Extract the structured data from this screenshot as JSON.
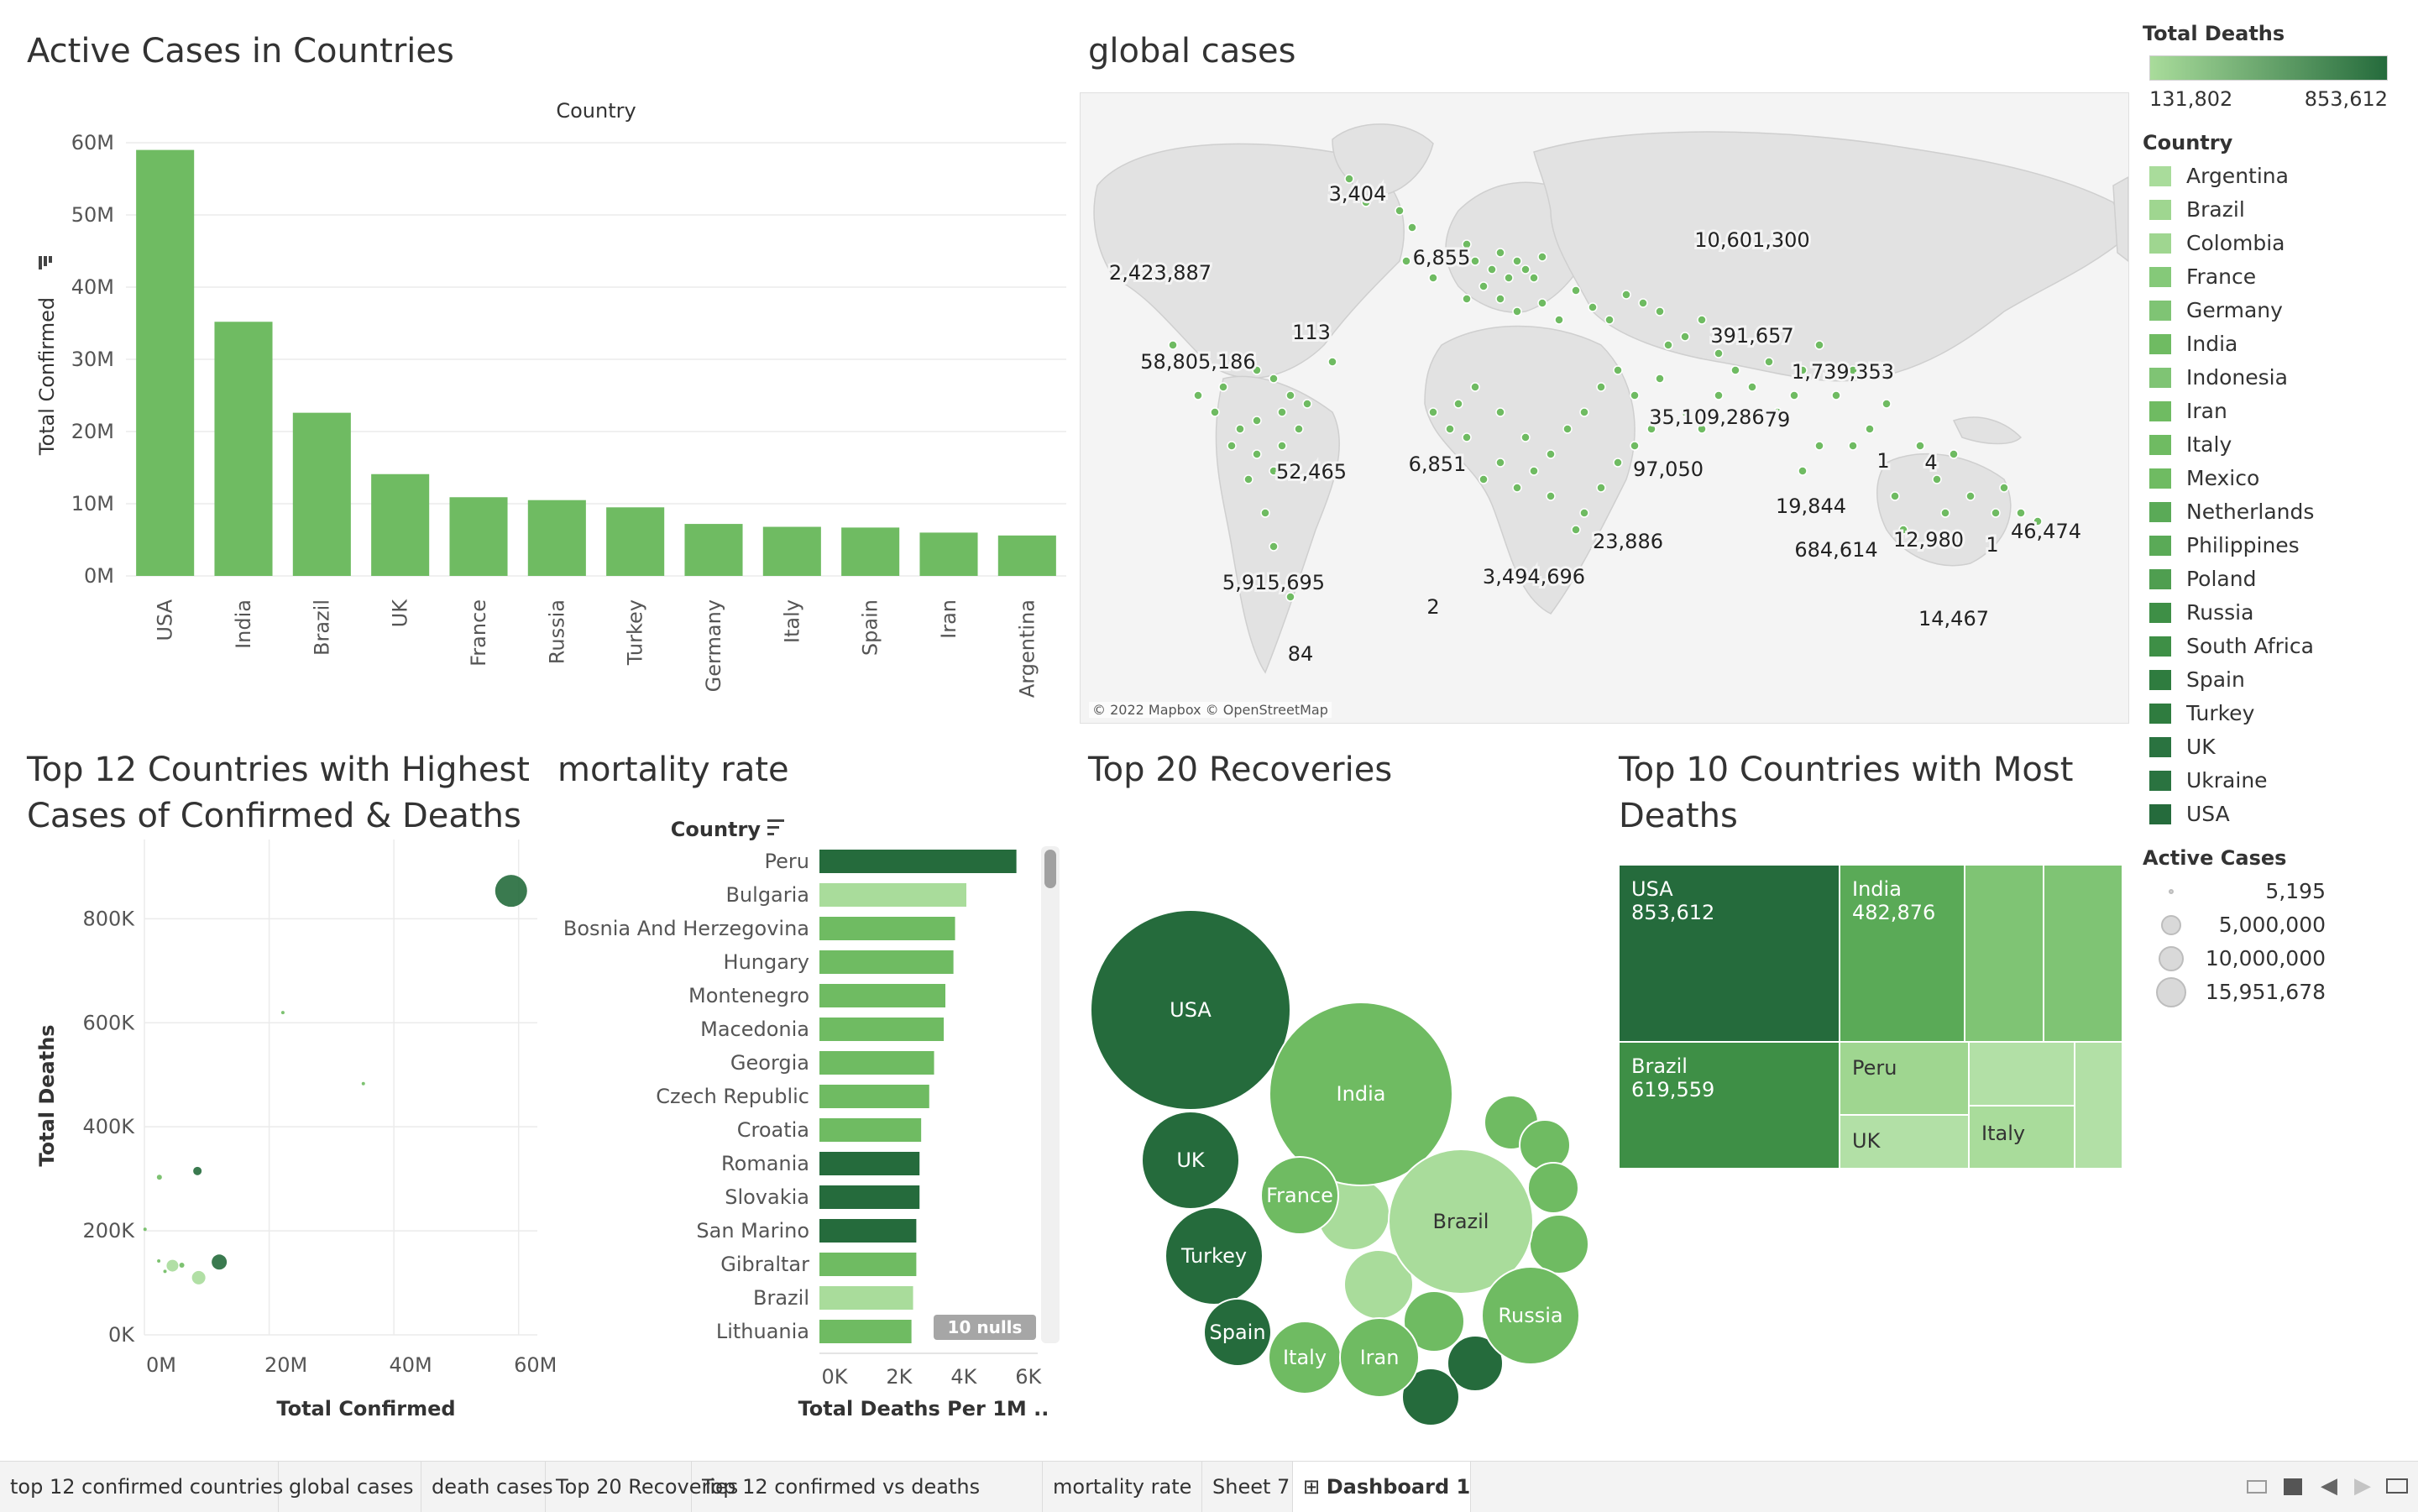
{
  "colors": {
    "bar_green": "#6fbb62",
    "dark_green": "#256b3c",
    "light_green": "#a9dc9b",
    "map_land": "#e4e4e4",
    "map_water": "#f5f5f5",
    "grid": "#ebebeb"
  },
  "active_cases": {
    "title": "Active Cases in Countries",
    "chart_data": {
      "type": "bar",
      "title": "Country",
      "xlabel": "",
      "ylabel": "Total Confirmed",
      "categories": [
        "USA",
        "India",
        "Brazil",
        "UK",
        "France",
        "Russia",
        "Turkey",
        "Germany",
        "Italy",
        "Spain",
        "Iran",
        "Argentina"
      ],
      "values": [
        59000000,
        35200000,
        22600000,
        14100000,
        10900000,
        10500000,
        9500000,
        7200000,
        6800000,
        6700000,
        6000000,
        5600000
      ],
      "yticks": [
        "60M",
        "50M",
        "40M",
        "30M",
        "20M",
        "10M",
        "0M"
      ],
      "ylim": [
        0,
        60000000
      ],
      "grid": true
    }
  },
  "global_cases": {
    "title": "global cases",
    "attribution": "© 2022 Mapbox © OpenStreetMap",
    "labels": [
      "3,404",
      "2,423,887",
      "6,855",
      "10,601,300",
      "113",
      "58,805,186",
      "391,657",
      "1,739,353",
      "35,109,286",
      "79",
      "52,465",
      "6,851",
      "97,050",
      "1",
      "4",
      "19,844",
      "46,474",
      "684,614",
      "12,980",
      "1",
      "23,886",
      "5,915,695",
      "3,494,696",
      "2",
      "14,467",
      "84"
    ]
  },
  "scatter": {
    "title": "Top 12 Countries with Highest Cases of Confirmed & Deaths",
    "chart_data": {
      "type": "scatter",
      "xlabel": "Total Confirmed",
      "ylabel": "Total Deaths",
      "xticks": [
        "0M",
        "20M",
        "40M",
        "60M"
      ],
      "yticks": [
        "800K",
        "600K",
        "400K",
        "200K",
        "0K"
      ],
      "xlim": [
        0,
        63000000
      ],
      "ylim": [
        0,
        920000
      ],
      "points": [
        {
          "x": 58800000,
          "y": 853600,
          "r": 19,
          "shade": "dark"
        },
        {
          "x": 35100000,
          "y": 482900,
          "r": 2,
          "shade": "mid"
        },
        {
          "x": 22200000,
          "y": 619600,
          "r": 2,
          "shade": "mid"
        },
        {
          "x": 8500000,
          "y": 315000,
          "r": 5,
          "shade": "dark"
        },
        {
          "x": 2400000,
          "y": 303000,
          "r": 3,
          "shade": "mid"
        },
        {
          "x": 100000,
          "y": 203000,
          "r": 2,
          "shade": "mid"
        },
        {
          "x": 12000000,
          "y": 140000,
          "r": 9,
          "shade": "dark"
        },
        {
          "x": 4500000,
          "y": 133000,
          "r": 7,
          "shade": "light"
        },
        {
          "x": 8700000,
          "y": 110000,
          "r": 8,
          "shade": "light"
        },
        {
          "x": 2300000,
          "y": 142000,
          "r": 2,
          "shade": "mid"
        },
        {
          "x": 3300000,
          "y": 122000,
          "r": 2,
          "shade": "mid"
        },
        {
          "x": 6000000,
          "y": 134000,
          "r": 3,
          "shade": "mid"
        }
      ],
      "grid": true
    }
  },
  "mortality": {
    "title": "mortality rate",
    "chart_data": {
      "type": "bar",
      "orientation": "horizontal",
      "ylabel": "Country",
      "xlabel": "Total Deaths Per 1M ..",
      "categories": [
        "Peru",
        "Bulgaria",
        "Bosnia And Herzegovina",
        "Hungary",
        "Montenegro",
        "Macedonia",
        "Georgia",
        "Czech Republic",
        "Croatia",
        "Romania",
        "Slovakia",
        "San Marino",
        "Gibraltar",
        "Brazil",
        "Lithuania"
      ],
      "values": [
        6100,
        4550,
        4200,
        4150,
        3900,
        3850,
        3550,
        3400,
        3150,
        3100,
        3100,
        3000,
        3000,
        2900,
        2850
      ],
      "shades": [
        "dark",
        "light",
        "mid",
        "mid",
        "mid",
        "mid",
        "mid",
        "mid",
        "mid",
        "dark",
        "dark",
        "dark",
        "mid",
        "light",
        "mid"
      ],
      "xticks": [
        "0K",
        "2K",
        "4K",
        "6K"
      ],
      "xlim": [
        0,
        6500
      ],
      "nulls_badge": "10 nulls"
    }
  },
  "recoveries": {
    "title": "Top 20 Recoveries",
    "bubbles": [
      {
        "label": "USA",
        "shade": "dark"
      },
      {
        "label": "India",
        "shade": "mid"
      },
      {
        "label": "UK",
        "shade": "dark"
      },
      {
        "label": "Brazil",
        "shade": "light"
      },
      {
        "label": "Turkey",
        "shade": "dark"
      },
      {
        "label": "France",
        "shade": "mid"
      },
      {
        "label": "Russia",
        "shade": "mid"
      },
      {
        "label": "Spain",
        "shade": "dark"
      },
      {
        "label": "Italy",
        "shade": "mid"
      },
      {
        "label": "Iran",
        "shade": "mid"
      }
    ]
  },
  "top10_deaths": {
    "title": "Top 10 Countries with Most Deaths",
    "cells": [
      {
        "name": "USA",
        "value": "853,612"
      },
      {
        "name": "India",
        "value": "482,876"
      },
      {
        "name": "Brazil",
        "value": "619,559"
      },
      {
        "name": "Peru",
        "value": ""
      },
      {
        "name": "UK",
        "value": ""
      },
      {
        "name": "Italy",
        "value": ""
      }
    ]
  },
  "legend": {
    "total_deaths_title": "Total Deaths",
    "total_deaths_min": "131,802",
    "total_deaths_max": "853,612",
    "country_title": "Country",
    "countries": [
      "Argentina",
      "Brazil",
      "Colombia",
      "France",
      "Germany",
      "India",
      "Indonesia",
      "Iran",
      "Italy",
      "Mexico",
      "Netherlands",
      "Philippines",
      "Poland",
      "Russia",
      "South Africa",
      "Spain",
      "Turkey",
      "UK",
      "Ukraine",
      "USA"
    ],
    "country_colors": [
      "#a9dc9b",
      "#9fd690",
      "#9fd690",
      "#85c979",
      "#7fc474",
      "#6fbb62",
      "#7fc474",
      "#6fbb62",
      "#6fbb62",
      "#6fbb62",
      "#5aaa57",
      "#5aaa57",
      "#4f9e50",
      "#3e8f46",
      "#3e8f46",
      "#2f7c3f",
      "#2f7c3f",
      "#2a7340",
      "#2a7340",
      "#256b3c"
    ],
    "active_cases_title": "Active Cases",
    "sizes": [
      "5,195",
      "5,000,000",
      "10,000,000",
      "15,951,678"
    ]
  },
  "tabs": [
    {
      "label": "top 12 confirmed countries",
      "active": false
    },
    {
      "label": "global cases",
      "active": false
    },
    {
      "label": "death cases",
      "active": false
    },
    {
      "label": "Top 20 Recoveries",
      "active": false
    },
    {
      "label": "Top 12 confirmed vs deaths",
      "active": false
    },
    {
      "label": "mortality rate",
      "active": false
    },
    {
      "label": "Sheet 7",
      "active": false
    },
    {
      "label": "Dashboard 1",
      "active": true,
      "icon": "dashboard-grid-icon"
    }
  ]
}
